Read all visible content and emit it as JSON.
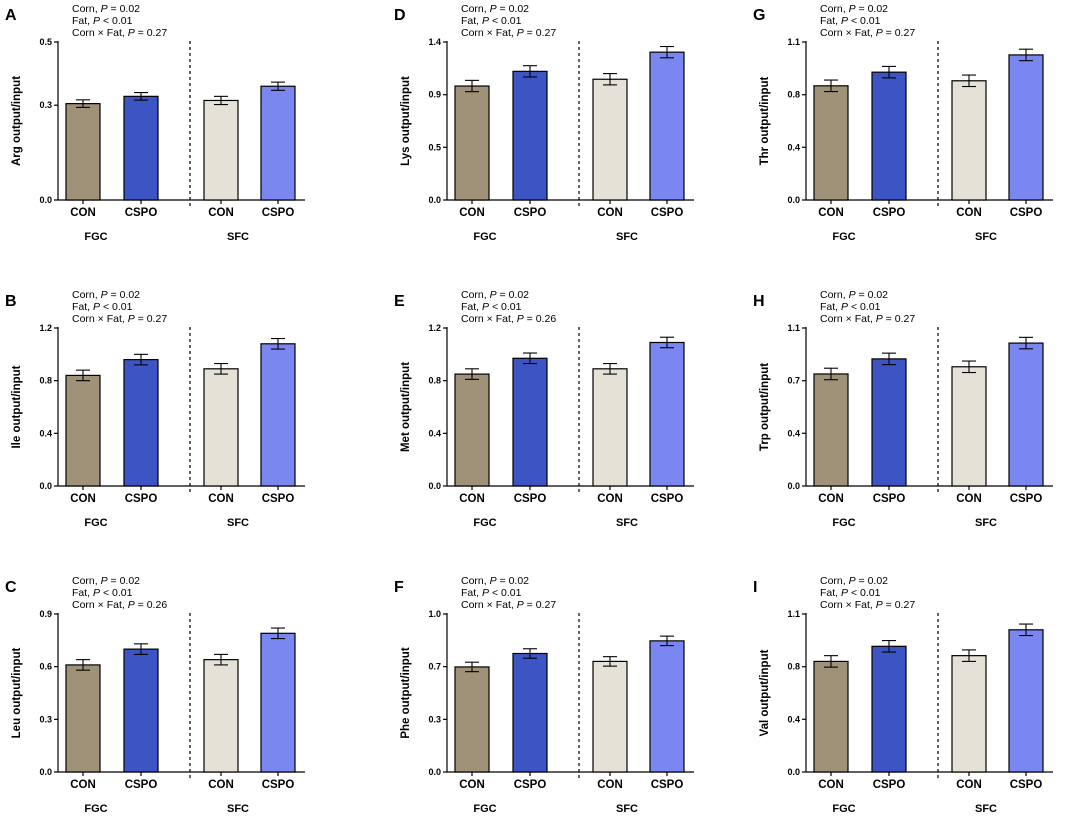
{
  "colors": {
    "fgc_con": "#a09278",
    "fgc_cspo": "#3d55c4",
    "sfc_con": "#e5e1d6",
    "sfc_cspo": "#7b87f0"
  },
  "chart_data": [
    {
      "panel": "A",
      "type": "bar",
      "ylabel": "Arg output/input",
      "stats": [
        "Corn, P = 0.02",
        "Fat, P < 0.01",
        "Corn × Fat, P = 0.27"
      ],
      "yticks": [
        "0.0",
        "0.3",
        "0.5"
      ],
      "ytick_values": [
        0,
        0.3,
        0.5
      ],
      "ylim": [
        0,
        0.5
      ],
      "categories": [
        "CON",
        "CSPO",
        "CON",
        "CSPO"
      ],
      "groups": [
        "FGC",
        "SFC"
      ],
      "values": [
        0.305,
        0.328,
        0.315,
        0.36
      ],
      "errors": [
        0.012,
        0.012,
        0.013,
        0.013
      ]
    },
    {
      "panel": "B",
      "type": "bar",
      "ylabel": "Ile output/input",
      "stats": [
        "Corn, P = 0.02",
        "Fat, P < 0.01",
        "Corn × Fat, P = 0.27"
      ],
      "yticks": [
        "0.0",
        "0.4",
        "0.8",
        "1.2"
      ],
      "ytick_values": [
        0,
        0.4,
        0.8,
        1.2
      ],
      "ylim": [
        0,
        1.2
      ],
      "categories": [
        "CON",
        "CSPO",
        "CON",
        "CSPO"
      ],
      "groups": [
        "FGC",
        "SFC"
      ],
      "values": [
        0.84,
        0.96,
        0.89,
        1.08
      ],
      "errors": [
        0.04,
        0.04,
        0.04,
        0.04
      ]
    },
    {
      "panel": "C",
      "type": "bar",
      "ylabel": "Leu output/input",
      "stats": [
        "Corn, P = 0.02",
        "Fat, P < 0.01",
        "Corn × Fat, P = 0.26"
      ],
      "yticks": [
        "0.0",
        "0.3",
        "0.6",
        "0.9"
      ],
      "ytick_values": [
        0,
        0.3,
        0.6,
        0.9
      ],
      "ylim": [
        0,
        0.9
      ],
      "categories": [
        "CON",
        "CSPO",
        "CON",
        "CSPO"
      ],
      "groups": [
        "FGC",
        "SFC"
      ],
      "values": [
        0.61,
        0.7,
        0.64,
        0.79
      ],
      "errors": [
        0.03,
        0.03,
        0.03,
        0.03
      ]
    },
    {
      "panel": "D",
      "type": "bar",
      "ylabel": "Lys output/input",
      "stats": [
        "Corn, P = 0.02",
        "Fat, P < 0.01",
        "Corn × Fat, P = 0.27"
      ],
      "yticks": [
        "0.0",
        "0.5",
        "0.9",
        "1.4"
      ],
      "ytick_values": [
        0,
        0.467,
        0.933,
        1.4
      ],
      "ylim": [
        0,
        1.4
      ],
      "categories": [
        "CON",
        "CSPO",
        "CON",
        "CSPO"
      ],
      "groups": [
        "FGC",
        "SFC"
      ],
      "values": [
        1.01,
        1.14,
        1.07,
        1.31
      ],
      "errors": [
        0.05,
        0.05,
        0.05,
        0.05
      ]
    },
    {
      "panel": "E",
      "type": "bar",
      "ylabel": "Met output/input",
      "stats": [
        "Corn, P = 0.02",
        "Fat, P < 0.01",
        "Corn × Fat, P = 0.26"
      ],
      "yticks": [
        "0.0",
        "0.4",
        "0.8",
        "1.2"
      ],
      "ytick_values": [
        0,
        0.4,
        0.8,
        1.2
      ],
      "ylim": [
        0,
        1.2
      ],
      "categories": [
        "CON",
        "CSPO",
        "CON",
        "CSPO"
      ],
      "groups": [
        "FGC",
        "SFC"
      ],
      "values": [
        0.85,
        0.97,
        0.89,
        1.09
      ],
      "errors": [
        0.04,
        0.04,
        0.04,
        0.04
      ]
    },
    {
      "panel": "F",
      "type": "bar",
      "ylabel": "Phe output/input",
      "stats": [
        "Corn, P = 0.02",
        "Fat, P < 0.01",
        "Corn × Fat, P = 0.27"
      ],
      "yticks": [
        "0.0",
        "0.3",
        "0.7",
        "1.0"
      ],
      "ytick_values": [
        0,
        0.333,
        0.667,
        1.0
      ],
      "ylim": [
        0,
        1.0
      ],
      "categories": [
        "CON",
        "CSPO",
        "CON",
        "CSPO"
      ],
      "groups": [
        "FGC",
        "SFC"
      ],
      "values": [
        0.665,
        0.75,
        0.7,
        0.83
      ],
      "errors": [
        0.03,
        0.03,
        0.03,
        0.03
      ]
    },
    {
      "panel": "G",
      "type": "bar",
      "ylabel": "Thr output/input",
      "stats": [
        "Corn, P = 0.02",
        "Fat, P < 0.01",
        "Corn × Fat, P = 0.27"
      ],
      "yticks": [
        "0.0",
        "0.4",
        "0.8",
        "1.1"
      ],
      "ytick_values": [
        0,
        0.367,
        0.733,
        1.1
      ],
      "ylim": [
        0,
        1.1
      ],
      "categories": [
        "CON",
        "CSPO",
        "CON",
        "CSPO"
      ],
      "groups": [
        "FGC",
        "SFC"
      ],
      "values": [
        0.795,
        0.89,
        0.83,
        1.01
      ],
      "errors": [
        0.04,
        0.04,
        0.04,
        0.04
      ]
    },
    {
      "panel": "H",
      "type": "bar",
      "ylabel": "Trp output/input",
      "stats": [
        "Corn, P = 0.02",
        "Fat, P < 0.01",
        "Corn × Fat, P = 0.27"
      ],
      "yticks": [
        "0.0",
        "0.4",
        "0.7",
        "1.1"
      ],
      "ytick_values": [
        0,
        0.367,
        0.733,
        1.1
      ],
      "ylim": [
        0,
        1.1
      ],
      "categories": [
        "CON",
        "CSPO",
        "CON",
        "CSPO"
      ],
      "groups": [
        "FGC",
        "SFC"
      ],
      "values": [
        0.78,
        0.885,
        0.83,
        0.995
      ],
      "errors": [
        0.04,
        0.04,
        0.04,
        0.04
      ]
    },
    {
      "panel": "I",
      "type": "bar",
      "ylabel": "Val output/input",
      "stats": [
        "Corn, P = 0.02",
        "Fat, P < 0.01",
        "Corn × Fat, P = 0.27"
      ],
      "yticks": [
        "0.0",
        "0.4",
        "0.8",
        "1.1"
      ],
      "ytick_values": [
        0,
        0.367,
        0.733,
        1.1
      ],
      "ylim": [
        0,
        1.1
      ],
      "categories": [
        "CON",
        "CSPO",
        "CON",
        "CSPO"
      ],
      "groups": [
        "FGC",
        "SFC"
      ],
      "values": [
        0.77,
        0.875,
        0.81,
        0.99
      ],
      "errors": [
        0.04,
        0.04,
        0.04,
        0.04
      ]
    }
  ]
}
